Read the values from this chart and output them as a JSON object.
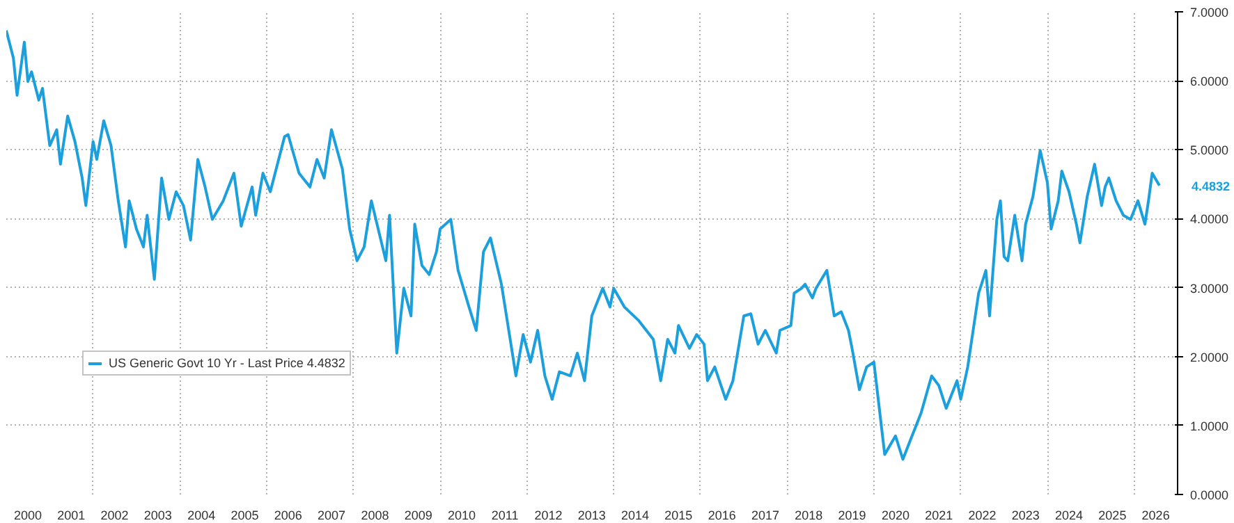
{
  "chart_data": {
    "type": "line",
    "legend": "bottom left",
    "grid": true,
    "line_style": "solid",
    "marker": "none",
    "xlim": [
      "2000-01",
      "2027-01"
    ],
    "xticks": [
      {
        "value": "2000-07",
        "label": "2000"
      },
      {
        "value": "2001-07",
        "label": "2001"
      },
      {
        "value": "2002-07",
        "label": "2002"
      },
      {
        "value": "2003-07",
        "label": "2003"
      },
      {
        "value": "2004-07",
        "label": "2004"
      },
      {
        "value": "2005-07",
        "label": "2005"
      },
      {
        "value": "2006-07",
        "label": "2006"
      },
      {
        "value": "2007-07",
        "label": "2007"
      },
      {
        "value": "2008-07",
        "label": "2008"
      },
      {
        "value": "2009-07",
        "label": "2009"
      },
      {
        "value": "2010-07",
        "label": "2010"
      },
      {
        "value": "2011-07",
        "label": "2011"
      },
      {
        "value": "2012-07",
        "label": "2012"
      },
      {
        "value": "2013-07",
        "label": "2013"
      },
      {
        "value": "2014-07",
        "label": "2014"
      },
      {
        "value": "2015-07",
        "label": "2015"
      },
      {
        "value": "2016-07",
        "label": "2016"
      },
      {
        "value": "2017-07",
        "label": "2017"
      },
      {
        "value": "2018-07",
        "label": "2018"
      },
      {
        "value": "2019-07",
        "label": "2019"
      },
      {
        "value": "2020-07",
        "label": "2020"
      },
      {
        "value": "2021-07",
        "label": "2021"
      },
      {
        "value": "2022-07",
        "label": "2022"
      },
      {
        "value": "2023-07",
        "label": "2023"
      },
      {
        "value": "2024-07",
        "label": "2024"
      },
      {
        "value": "2025-07",
        "label": "2025"
      },
      {
        "value": "2026-07",
        "label": "2026"
      },
      {
        "value": "2002-01",
        "label": null
      },
      {
        "value": "2004-01",
        "label": null
      },
      {
        "value": "2006-01",
        "label": null
      },
      {
        "value": "2008-01",
        "label": null
      },
      {
        "value": "2010-01",
        "label": null
      },
      {
        "value": "2012-01",
        "label": null
      },
      {
        "value": "2014-01",
        "label": null
      },
      {
        "value": "2016-01",
        "label": null
      },
      {
        "value": "2018-01",
        "label": null
      },
      {
        "value": "2020-01",
        "label": null
      },
      {
        "value": "2022-01",
        "label": null
      },
      {
        "value": "2024-01",
        "label": null
      },
      {
        "value": "2026-01",
        "label": null
      }
    ],
    "ylim": [
      0,
      7
    ],
    "yticks": [
      {
        "value": 0,
        "label": "0.0000"
      },
      {
        "value": 1,
        "label": "1.0000"
      },
      {
        "value": 2,
        "label": "2.0000"
      },
      {
        "value": 3,
        "label": "3.0000"
      },
      {
        "value": 4,
        "label": "4.0000"
      },
      {
        "value": 5,
        "label": "5.0000"
      },
      {
        "value": 6,
        "label": "6.0000"
      },
      {
        "value": 7,
        "label": "7.0000"
      }
    ],
    "annotations": [
      "4.4832"
    ],
    "x": [
      "2000-01",
      "2000-03",
      "2000-04",
      "2000-06",
      "2000-07",
      "2000-08",
      "2000-10",
      "2000-11",
      "2001-01",
      "2001-03",
      "2001-04",
      "2001-06",
      "2001-08",
      "2001-10",
      "2001-11",
      "2002-01",
      "2002-02",
      "2002-04",
      "2002-06",
      "2002-08",
      "2002-10",
      "2002-11",
      "2003-01",
      "2003-03",
      "2003-04",
      "2003-06",
      "2003-08",
      "2003-10",
      "2003-12",
      "2004-02",
      "2004-04",
      "2004-06",
      "2004-08",
      "2004-10",
      "2005-01",
      "2005-04",
      "2005-06",
      "2005-09",
      "2005-10",
      "2005-12",
      "2006-02",
      "2006-06",
      "2006-07",
      "2006-10",
      "2007-01",
      "2007-03",
      "2007-05",
      "2007-07",
      "2007-10",
      "2007-12",
      "2008-02",
      "2008-04",
      "2008-06",
      "2008-10",
      "2008-11",
      "2009-01",
      "2009-03",
      "2009-05",
      "2009-06",
      "2009-08",
      "2009-10",
      "2009-12",
      "2010-01",
      "2010-04",
      "2010-06",
      "2010-09",
      "2010-11",
      "2011-01",
      "2011-03",
      "2011-06",
      "2011-09",
      "2011-10",
      "2011-12",
      "2012-02",
      "2012-04",
      "2012-06",
      "2012-08",
      "2012-10",
      "2013-01",
      "2013-03",
      "2013-05",
      "2013-07",
      "2013-10",
      "2013-12",
      "2014-01",
      "2014-04",
      "2014-08",
      "2014-12",
      "2015-02",
      "2015-04",
      "2015-06",
      "2015-07",
      "2015-10",
      "2015-12",
      "2016-02",
      "2016-03",
      "2016-05",
      "2016-08",
      "2016-10",
      "2017-01",
      "2017-03",
      "2017-05",
      "2017-07",
      "2017-10",
      "2017-11",
      "2018-02",
      "2018-03",
      "2018-05",
      "2018-06",
      "2018-08",
      "2018-09",
      "2018-12",
      "2019-02",
      "2019-04",
      "2019-06",
      "2019-07",
      "2019-09",
      "2019-11",
      "2020-01",
      "2020-04",
      "2020-07",
      "2020-09",
      "2020-11",
      "2021-02",
      "2021-05",
      "2021-07",
      "2021-09",
      "2021-12",
      "2022-01",
      "2022-03",
      "2022-06",
      "2022-08",
      "2022-09",
      "2022-11",
      "2022-12",
      "2023-01",
      "2023-02",
      "2023-04",
      "2023-06",
      "2023-07",
      "2023-09",
      "2023-11",
      "2024-01",
      "2024-02",
      "2024-04",
      "2024-05",
      "2024-07",
      "2024-09",
      "2024-10",
      "2024-12",
      "2025-02",
      "2025-04",
      "2025-05",
      "2025-06",
      "2025-08",
      "2025-10",
      "2025-12",
      "2026-02",
      "2026-04",
      "2026-05",
      "2026-06",
      "2026-08"
    ],
    "series": [
      {
        "name": "US Generic Govt 10 Yr - Last Price 4.4832",
        "color": "#1b9fdd",
        "values": [
          6.73,
          6.33,
          5.79,
          6.56,
          5.99,
          6.13,
          5.72,
          5.89,
          5.06,
          5.29,
          4.79,
          5.49,
          5.12,
          4.59,
          4.19,
          5.12,
          4.86,
          5.42,
          5.06,
          4.26,
          3.59,
          4.26,
          3.85,
          3.59,
          4.05,
          3.12,
          4.59,
          3.99,
          4.39,
          4.19,
          3.69,
          4.86,
          4.46,
          3.99,
          4.26,
          4.66,
          3.89,
          4.46,
          4.05,
          4.66,
          4.39,
          5.19,
          5.22,
          4.66,
          4.46,
          4.86,
          4.59,
          5.29,
          4.72,
          3.85,
          3.39,
          3.59,
          4.26,
          3.39,
          4.05,
          2.05,
          2.99,
          2.59,
          3.92,
          3.32,
          3.19,
          3.52,
          3.85,
          3.99,
          3.25,
          2.72,
          2.38,
          3.52,
          3.72,
          3.05,
          2.05,
          1.72,
          2.32,
          1.92,
          2.38,
          1.72,
          1.38,
          1.78,
          1.72,
          2.05,
          1.65,
          2.59,
          2.99,
          2.72,
          2.99,
          2.72,
          2.52,
          2.25,
          1.65,
          2.25,
          2.05,
          2.45,
          2.12,
          2.32,
          2.18,
          1.65,
          1.85,
          1.38,
          1.65,
          2.59,
          2.62,
          2.18,
          2.38,
          2.05,
          2.38,
          2.45,
          2.92,
          2.99,
          3.05,
          2.85,
          2.99,
          3.25,
          2.59,
          2.65,
          2.38,
          2.12,
          1.52,
          1.85,
          1.92,
          0.58,
          0.85,
          0.51,
          0.78,
          1.18,
          1.72,
          1.58,
          1.25,
          1.65,
          1.38,
          1.85,
          2.92,
          3.25,
          2.59,
          3.99,
          4.26,
          3.45,
          3.39,
          4.05,
          3.39,
          3.92,
          4.32,
          4.99,
          4.52,
          3.85,
          4.26,
          4.69,
          4.39,
          3.92,
          3.65,
          4.32,
          4.79,
          4.19,
          4.46,
          4.59,
          4.26,
          4.05,
          3.99,
          4.26,
          3.92,
          4.26,
          4.66,
          4.48
        ]
      }
    ]
  }
}
